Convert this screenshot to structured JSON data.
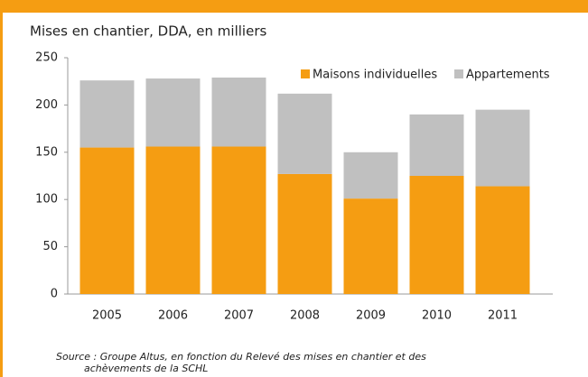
{
  "chart_data": {
    "type": "stacked_bar",
    "title": "Mises en chantier, DDA, en milliers",
    "categories": [
      "2005",
      "2006",
      "2007",
      "2008",
      "2009",
      "2010",
      "2011"
    ],
    "series": [
      {
        "name": "Maisons individuelles",
        "color": "#f59d12",
        "values": [
          155,
          156,
          156,
          127,
          101,
          125,
          114
        ]
      },
      {
        "name": "Appartements",
        "color": "#c0c0c0",
        "values": [
          71,
          72,
          73,
          85,
          49,
          65,
          81
        ]
      }
    ],
    "ylim": [
      0,
      250
    ],
    "yticks": [
      0,
      50,
      100,
      150,
      200,
      250
    ],
    "grid": false,
    "legend": "top-right",
    "source": [
      "Source : Groupe Altus, en fonction du Relevé des mises en chantier et des",
      "achèvements de la SCHL"
    ]
  }
}
